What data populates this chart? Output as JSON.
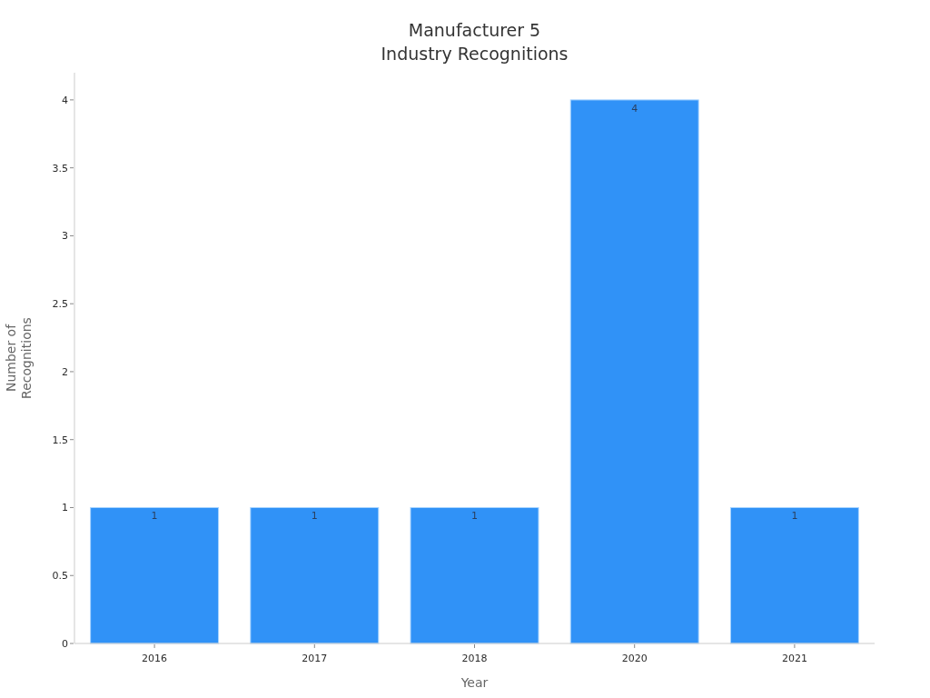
{
  "chart_data": {
    "type": "bar",
    "title": "Manufacturer 5\nIndustry Recognitions",
    "xlabel": "Year",
    "ylabel": "Number of\nRecognitions",
    "categories": [
      "2016",
      "2017",
      "2018",
      "2020",
      "2021"
    ],
    "values": [
      1,
      1,
      1,
      4,
      1
    ],
    "color": "#3092f7",
    "ylim": [
      0,
      4.2
    ],
    "yticks": [
      0,
      {
        "value": 0.5,
        "label": "0.5"
      },
      1,
      {
        "value": 1.5,
        "label": "1.5"
      },
      2,
      {
        "value": 2.5,
        "label": "2.5"
      },
      3,
      {
        "value": 3.5,
        "label": "3.5"
      },
      4
    ],
    "data_labels": true
  }
}
